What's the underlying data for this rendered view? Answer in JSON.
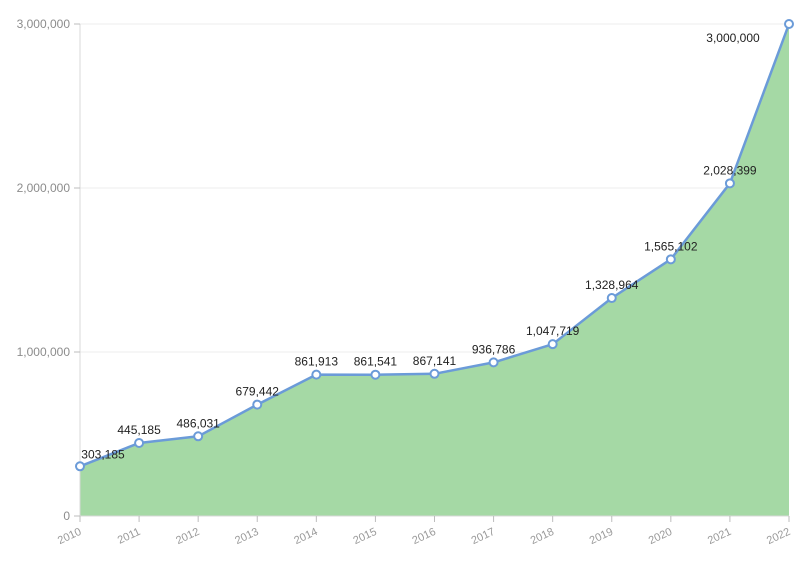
{
  "chart_data": {
    "type": "area",
    "title": "",
    "xlabel": "",
    "ylabel": "",
    "categories": [
      "2010",
      "2011",
      "2012",
      "2013",
      "2014",
      "2015",
      "2016",
      "2017",
      "2018",
      "2019",
      "2020",
      "2021",
      "2022"
    ],
    "values": [
      303185,
      445185,
      486031,
      679442,
      861913,
      861541,
      867141,
      936786,
      1047719,
      1328964,
      1565102,
      2028399,
      3000000
    ],
    "data_labels": [
      "303,185",
      "445,185",
      "486,031",
      "679,442",
      "861,913",
      "861,541",
      "867,141",
      "936,786",
      "1,047,719",
      "1,328,964",
      "1,565,102",
      "2,028,399",
      "3,000,000"
    ],
    "ylim": [
      0,
      3000000
    ],
    "yticks": [
      0,
      1000000,
      2000000,
      3000000
    ],
    "ytick_labels": [
      "0",
      "1,000,000",
      "2,000,000",
      "3,000,000"
    ],
    "grid": true,
    "legend": "none",
    "colors": {
      "fill": "#a5d9a5",
      "line": "#6b9bd8",
      "point_stroke": "#6b9bd8"
    }
  }
}
